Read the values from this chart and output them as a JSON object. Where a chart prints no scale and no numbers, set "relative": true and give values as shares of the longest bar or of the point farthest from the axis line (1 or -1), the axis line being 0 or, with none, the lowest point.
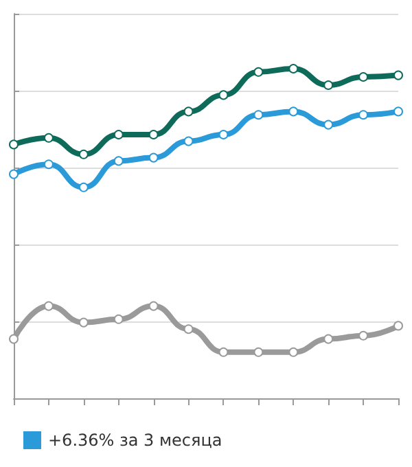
{
  "chart_data": {
    "type": "line",
    "relative": true,
    "categories": [
      null,
      null,
      null,
      null,
      null,
      null,
      null,
      null,
      null,
      null,
      null,
      null
    ],
    "series": [
      {
        "color": "#0e6b5a",
        "values": [
          0.77,
          0.79,
          0.74,
          0.8,
          0.8,
          0.87,
          0.92,
          0.99,
          1,
          0.95,
          0.975,
          0.98
        ]
      },
      {
        "name": "+6.36% за 3 месяца",
        "color": "#2b9ad9",
        "values": [
          0.68,
          0.71,
          0.64,
          0.72,
          0.73,
          0.78,
          0.8,
          0.86,
          0.87,
          0.83,
          0.86,
          0.87
        ]
      },
      {
        "color": "#9a9a9a",
        "values": [
          0.18,
          0.28,
          0.23,
          0.24,
          0.28,
          0.21,
          0.14,
          0.14,
          0.14,
          0.18,
          0.19,
          0.22
        ]
      }
    ],
    "grid": "y",
    "legend": "bottom",
    "marker": "circle",
    "line_style": "solid"
  }
}
